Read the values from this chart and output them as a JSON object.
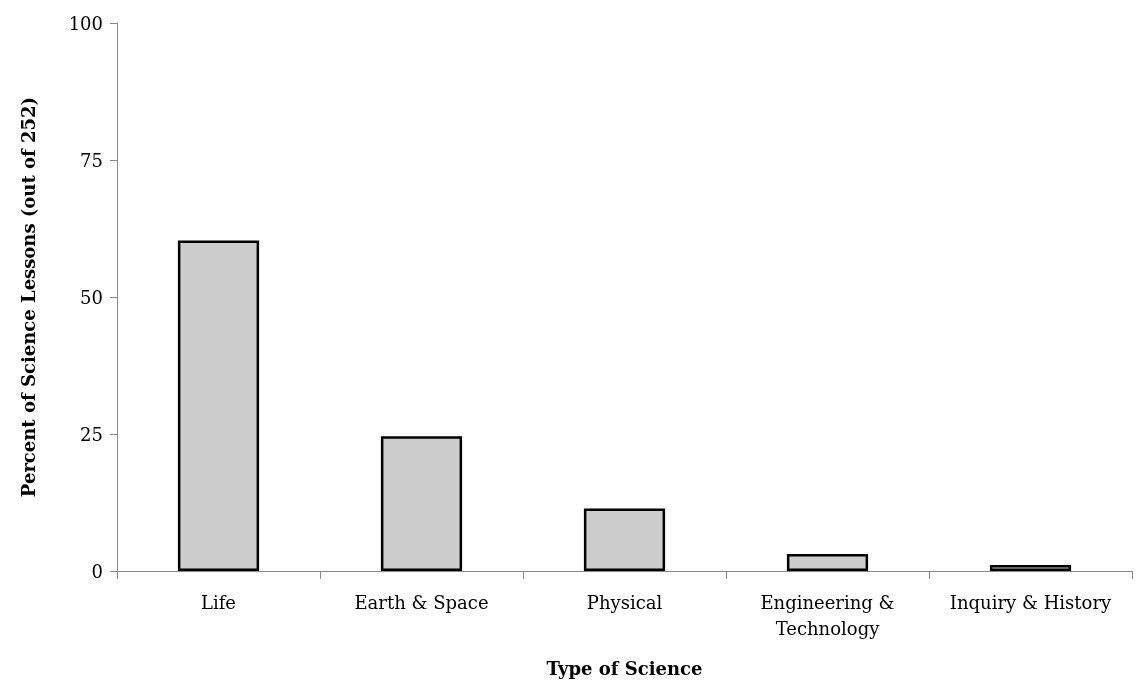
{
  "chart_data": {
    "type": "bar",
    "xlabel": "Type of Science",
    "ylabel": "Percent of Science Lessons (out of 252)",
    "categories": [
      "Life",
      "Earth & Space",
      "Physical",
      "Engineering &\nTechnology",
      "Inquiry & History"
    ],
    "values": [
      60.3,
      24.6,
      11.4,
      3.1,
      1.1
    ],
    "color": "#cccccc",
    "ylim": [
      0,
      100
    ],
    "yticks": [
      0,
      25,
      50,
      75,
      100
    ],
    "grid": false
  }
}
